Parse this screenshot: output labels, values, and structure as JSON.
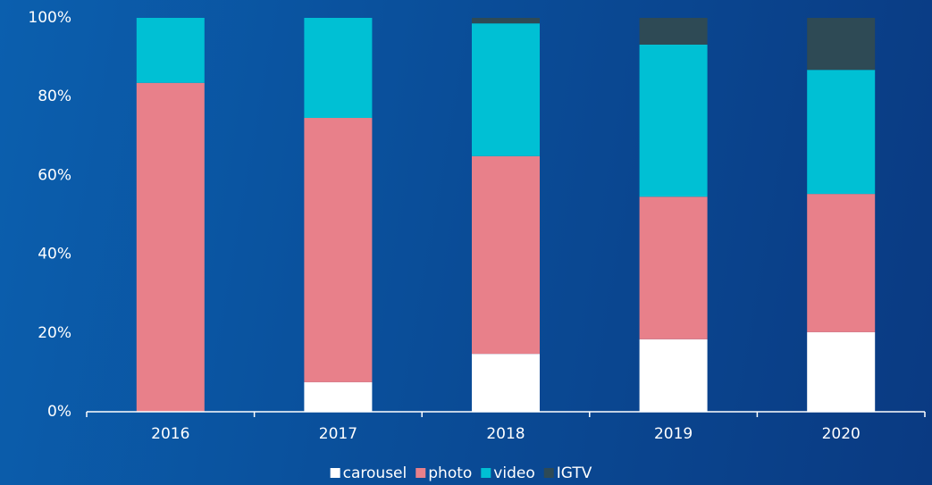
{
  "chart_data": {
    "type": "stacked_bar",
    "categories": [
      "2016",
      "2017",
      "2018",
      "2019",
      "2020"
    ],
    "series": [
      {
        "name": "carousel",
        "color": "#ffffff",
        "values": [
          0,
          7.5,
          14.7,
          18.4,
          20.2
        ]
      },
      {
        "name": "photo",
        "color": "#e8808a",
        "values": [
          83.5,
          67.1,
          50.2,
          36.2,
          35.1
        ]
      },
      {
        "name": "video",
        "color": "#00c0d4",
        "values": [
          16.5,
          25.4,
          33.7,
          38.6,
          31.5
        ]
      },
      {
        "name": "IGTV",
        "color": "#2e4a55",
        "values": [
          0,
          0,
          1.4,
          6.8,
          13.2
        ]
      }
    ],
    "ylim": [
      0,
      100
    ],
    "yticks": [
      {
        "value": 0,
        "label": "0%"
      },
      {
        "value": 20,
        "label": "20%"
      },
      {
        "value": 40,
        "label": "40%"
      },
      {
        "value": 60,
        "label": "60%"
      },
      {
        "value": 80,
        "label": "80%"
      },
      {
        "value": 100,
        "label": "100%"
      }
    ],
    "grid": false,
    "legend": "bottom"
  }
}
